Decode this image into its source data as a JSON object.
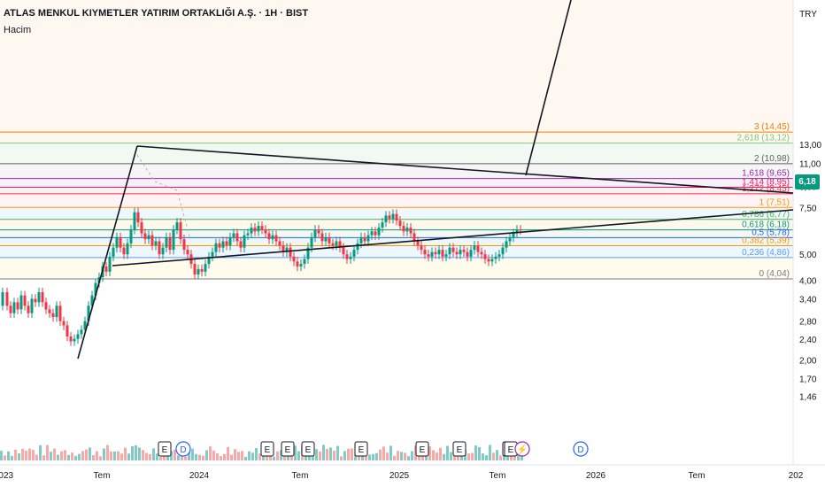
{
  "header": {
    "title": "ATLAS MENKUL KIYMETLER YATIRIM ORTAKLIĞI A.Ş. · 1H · BIST",
    "indicator": "Hacim",
    "currency": "TRY"
  },
  "last_price": "6,18",
  "chart_data": {
    "type": "candlestick",
    "y_scale": "log",
    "ylim": [
      1.35,
      15.5
    ],
    "y_ticks": [
      "13,00",
      "11,00",
      "9,00",
      "7,50",
      "6,18",
      "5,00",
      "4,00",
      "3,40",
      "2,80",
      "2,40",
      "2,00",
      "1,70",
      "1,46"
    ],
    "x_ticks": [
      "2023",
      "Tem",
      "2024",
      "Tem",
      "2025",
      "Tem",
      "2026",
      "Tem",
      "202"
    ],
    "fib_levels": [
      {
        "level": "3",
        "price": 14.45,
        "label": "3 (14,45)",
        "color": "#f57c00"
      },
      {
        "level": "2.618",
        "price": 13.12,
        "label": "2,618 (13,12)",
        "color": "#81c784"
      },
      {
        "level": "2",
        "price": 10.98,
        "label": "2 (10,98)",
        "color": "#616161"
      },
      {
        "level": "1.618",
        "price": 9.65,
        "label": "1,618 (9,65)",
        "color": "#9c27b0"
      },
      {
        "level": "1.414",
        "price": 8.95,
        "label": "1,414 (8,95)",
        "color": "#e91e63"
      },
      {
        "level": "1.272",
        "price": 8.45,
        "label": "1,272 (8,45)",
        "color": "#f23645"
      },
      {
        "level": "1",
        "price": 7.51,
        "label": "1 (7,51)",
        "color": "#ff9800"
      },
      {
        "level": "0.786",
        "price": 6.77,
        "label": "0,786 (6,77)",
        "color": "#4caf50"
      },
      {
        "level": "0.618",
        "price": 6.18,
        "label": "0,618 (6,18)",
        "color": "#089981"
      },
      {
        "level": "0.5",
        "price": 5.78,
        "label": "0,5 (5,78)",
        "color": "#2962ff"
      },
      {
        "level": "0.382",
        "price": 5.39,
        "label": "0,382 (5,39)",
        "color": "#ff9800"
      },
      {
        "level": "0.236",
        "price": 4.86,
        "label": "0,236 (4,86)",
        "color": "#5b9cf6"
      },
      {
        "level": "0",
        "price": 4.04,
        "label": "0 (4,04)",
        "color": "#787b86"
      }
    ],
    "series": [
      {
        "name": "Hacim",
        "type": "volume"
      }
    ],
    "events": [
      "E",
      "D",
      "E",
      "E",
      "E",
      "E",
      "E",
      "E",
      "E",
      "E",
      "⚡",
      "D"
    ]
  }
}
